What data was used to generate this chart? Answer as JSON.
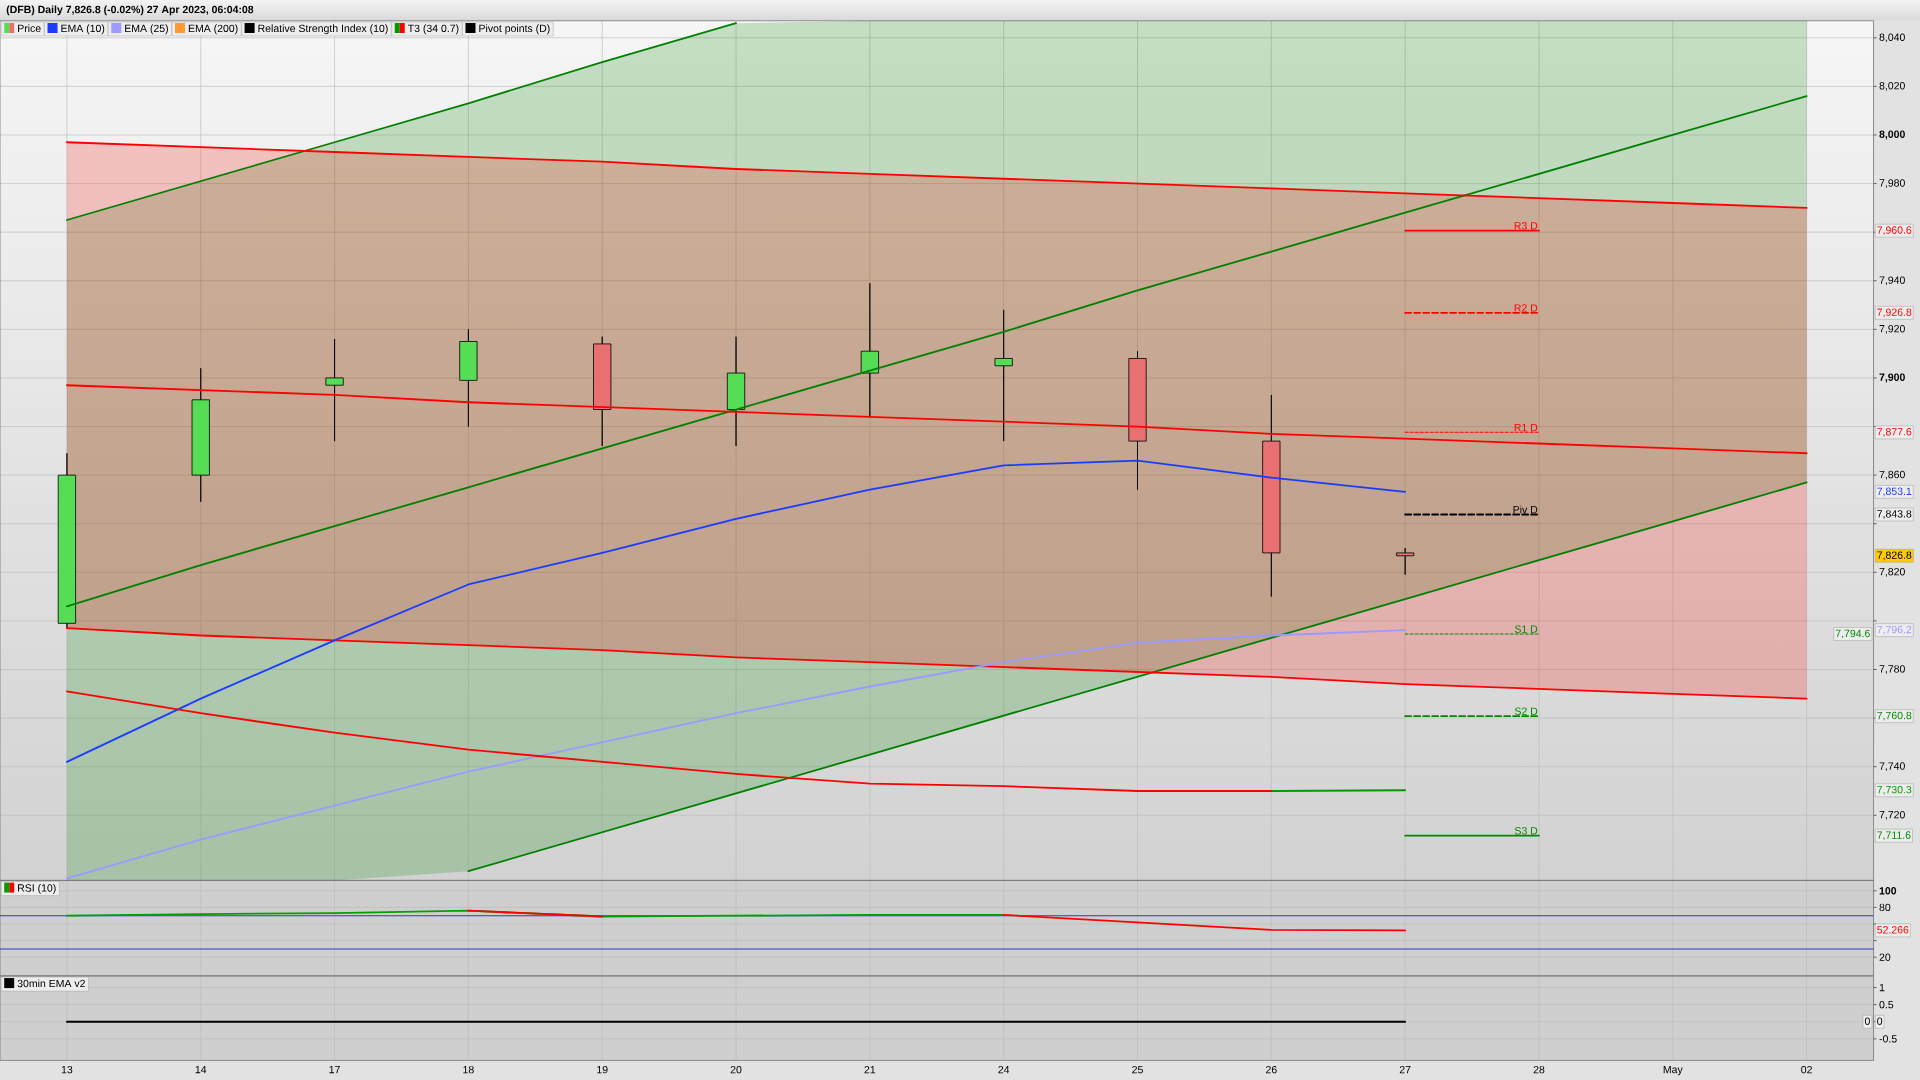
{
  "chart_data": [
    {
      "type": "candlestick",
      "title": "(DFB) Daily 7,826.8 (-0.02%) 27 Apr 2023, 06:04:08",
      "legend": "top left",
      "grid": true,
      "categories": [
        null,
        null,
        null,
        null,
        null,
        null,
        null,
        null,
        null,
        null,
        null,
        null,
        null,
        null
      ],
      "ylim": [
        7693.2,
        8047
      ],
      "yticks": [
        {
          "value": 7720,
          "label": "7,720"
        },
        {
          "value": 7740,
          "label": "7,740"
        },
        {
          "value": 7760,
          "label": null
        },
        {
          "value": 7780,
          "label": "7,780"
        },
        {
          "value": 7800,
          "label": null
        },
        {
          "value": 7820,
          "label": "7,820"
        },
        {
          "value": 7840,
          "label": null
        },
        {
          "value": 7860,
          "label": "7,860"
        },
        {
          "value": 7880,
          "label": null
        },
        {
          "value": 7900,
          "label": "7,900"
        },
        {
          "value": 7920,
          "label": "7,920"
        },
        {
          "value": 7940,
          "label": "7,940"
        },
        {
          "value": 7960,
          "label": null
        },
        {
          "value": 7980,
          "label": "7,980"
        },
        {
          "value": 8000,
          "label": "8,000"
        },
        {
          "value": 8020,
          "label": "8,020"
        },
        {
          "value": 8040,
          "label": "8,040"
        }
      ],
      "series": [
        {
          "type": "line",
          "color": "#008000",
          "values": [
            7806,
            7823,
            7839,
            7855,
            7871,
            7887,
            7903,
            7919,
            7936,
            7952,
            7968,
            7984,
            8000,
            8016
          ],
          "lower": [
            7693.2,
            7693.2,
            7693.2,
            7697,
            7713,
            7729,
            7745,
            7761,
            7777,
            7793,
            7809,
            7825,
            7841,
            7857
          ],
          "upper": [
            7965,
            7981,
            7997,
            8013,
            8030,
            8046,
            8047,
            8047,
            8047,
            8047,
            8047,
            8047,
            8047,
            8047
          ]
        },
        {
          "type": "line",
          "color": "#008000",
          "values": [
            7965,
            7981,
            7997,
            8013,
            8030,
            8046,
            null,
            null,
            null,
            null,
            null,
            null,
            null,
            null
          ]
        },
        {
          "type": "line",
          "color": "#008000",
          "values": [
            null,
            null,
            null,
            7697,
            7713,
            7729,
            7745,
            7761,
            7777,
            7793,
            7809,
            7825,
            7841,
            7857
          ]
        },
        {
          "type": "line",
          "color": "#ff0000",
          "values": [
            7897,
            7895,
            7893,
            7890,
            7888,
            7886,
            7884,
            7882,
            7880,
            7877,
            7875,
            7873,
            7871,
            7869
          ],
          "lower": [
            7797,
            7794,
            7792,
            7790,
            7788,
            7785,
            7783,
            7781,
            7779,
            7777,
            7774,
            7772,
            7770,
            7768
          ],
          "upper": [
            7997,
            7995,
            7993,
            7991,
            7989,
            7986,
            7984,
            7982,
            7980,
            7978,
            7976,
            7974,
            7972,
            7970
          ]
        },
        {
          "type": "line",
          "color": "#ff0000",
          "values": [
            7997,
            7995,
            7993,
            7991,
            7989,
            7986,
            7984,
            7982,
            7980,
            7978,
            7976,
            7974,
            7972,
            7970
          ]
        },
        {
          "type": "line",
          "color": "#ff0000",
          "values": [
            7797,
            7794,
            7792,
            7790,
            7788,
            7785,
            7783,
            7781,
            7779,
            7777,
            7774,
            7772,
            7770,
            7768
          ]
        },
        {
          "name": "Price",
          "ohlc": [
            [
              7799,
              7869,
              7797,
              7860
            ],
            [
              7860,
              7904,
              7849,
              7891
            ],
            [
              7897,
              7916,
              7874,
              7900
            ],
            [
              7899,
              7920,
              7880,
              7915
            ],
            [
              7914,
              7917,
              7872,
              7887
            ],
            [
              7887,
              7917,
              7872,
              7902
            ],
            [
              7902,
              7939,
              7884,
              7911
            ],
            [
              7905,
              7928,
              7874,
              7908
            ],
            [
              7908,
              7911,
              7854,
              7874
            ],
            [
              7874,
              7893,
              7810,
              7828
            ],
            [
              7828,
              7830,
              7819,
              7826.8
            ],
            null,
            null,
            null
          ],
          "colors": [
            "#55dd55",
            "#55dd55",
            "#55dd55",
            "#55dd55",
            "#e87070",
            "#55dd55",
            "#55dd55",
            "#55dd55",
            "#e87070",
            "#e87070",
            "#e87070",
            null,
            null,
            null
          ]
        },
        {
          "name": "EMA (10)",
          "type": "line",
          "color": "#1a3cff",
          "values": [
            7742,
            7768,
            7792,
            7815,
            7828,
            7842,
            7854,
            7864,
            7866,
            7859,
            7853.1,
            null,
            null,
            null
          ]
        },
        {
          "name": "EMA (25)",
          "type": "line",
          "color": "#9a9aff",
          "values": [
            7694,
            7710,
            7724,
            7738,
            7750,
            7762,
            7773,
            7783,
            7791,
            7794,
            7796.2,
            null,
            null,
            null
          ]
        },
        {
          "name": "EMA (200)",
          "type": "line",
          "color": "#ff9933",
          "values": [
            null,
            null,
            null,
            null,
            null,
            null,
            null,
            null,
            null,
            null,
            null,
            null,
            null,
            null
          ]
        },
        {
          "name": "Relative Strength Index (10)",
          "type": "line",
          "color": "#000000",
          "values": [
            null,
            null,
            null,
            null,
            null,
            null,
            null,
            null,
            null,
            null,
            null,
            null,
            null,
            null
          ]
        },
        {
          "name": "T3 (34 0.7)",
          "type": "line",
          "color": "#009900",
          "values": [
            null,
            null,
            null,
            null,
            null,
            null,
            null,
            null,
            null,
            7730,
            7730.3,
            null,
            null,
            null
          ]
        },
        {
          "type": "line",
          "color": "#ff0000",
          "values": [
            7771,
            7762,
            7754,
            7747,
            7742,
            7737,
            7733,
            7732,
            7730,
            7730,
            null,
            null,
            null,
            null
          ]
        },
        {
          "name": "Pivot points (D)",
          "type": "line",
          "color": "#000000",
          "values": [
            null,
            null,
            null,
            null,
            null,
            null,
            null,
            null,
            null,
            null,
            null,
            null,
            null,
            null
          ]
        }
      ],
      "ref_lines": [
        {
          "axis": "y",
          "value": 7960.6,
          "label": "R3 D",
          "color": "#ff0000"
        },
        {
          "axis": "y",
          "value": 7926.8,
          "label": "R2 D",
          "color": "#ff0000",
          "line_style": "dashed"
        },
        {
          "axis": "y",
          "value": 7877.6,
          "label": "R1 D",
          "color": "#ff0000",
          "line_style": "dotted"
        },
        {
          "axis": "y",
          "value": 7843.8,
          "label": "Piv D",
          "color": "#000000",
          "line_style": "dashed"
        },
        {
          "axis": "y",
          "value": 7794.6,
          "label": "S1 D",
          "color": "#008800",
          "line_style": "dotted"
        },
        {
          "axis": "y",
          "value": 7760.8,
          "label": "S2 D",
          "color": "#008800",
          "line_style": "dashed"
        },
        {
          "axis": "y",
          "value": 7711.6,
          "label": "S3 D",
          "color": "#008800"
        }
      ],
      "annotations": [
        {
          "text": "7,960.6",
          "y": 7960.6
        },
        {
          "text": "7,926.8",
          "y": 7926.8
        },
        {
          "text": "7,877.6",
          "y": 7877.6
        },
        {
          "text": "7,853.1",
          "y": 7853.1
        },
        {
          "text": "7,843.8",
          "y": 7843.8
        },
        {
          "text": "7,826.8",
          "y": 7826.8
        },
        {
          "text": "7,796.2",
          "y": 7796.2
        },
        {
          "text": "7,794.6",
          "y": 7794.6
        },
        {
          "text": "7,760.8",
          "y": 7760.8
        },
        {
          "text": "7,730.3",
          "y": 7730.3
        },
        {
          "text": "7,711.6",
          "y": 7711.6
        }
      ]
    },
    {
      "type": "line",
      "legend": "top left",
      "grid": true,
      "categories": [
        null,
        null,
        null,
        null,
        null,
        null,
        null,
        null,
        null,
        null,
        null,
        null,
        null,
        null
      ],
      "ylim": [
        -2.5,
        112.5
      ],
      "yticks": [
        20,
        {
          "value": 40,
          "label": null
        },
        {
          "value": 60,
          "label": null
        },
        80,
        100
      ],
      "series": [
        {
          "name": "RSI (10)",
          "color": "#00a000",
          "values": [
            70,
            72,
            73,
            76,
            69,
            70,
            71,
            71,
            null,
            null,
            null,
            null,
            null,
            null
          ]
        },
        {
          "color": "#ff0000",
          "values": [
            null,
            null,
            null,
            76,
            69,
            null,
            null,
            71,
            62,
            53,
            52.266,
            null,
            null,
            null
          ]
        }
      ],
      "ref_lines": [
        {
          "axis": "y",
          "value": 70,
          "color": "#3333cc"
        },
        {
          "axis": "y",
          "value": 30,
          "color": "#3333cc"
        }
      ],
      "annotations": [
        {
          "text": "52.266",
          "y": 52.266
        }
      ]
    },
    {
      "type": "line",
      "legend": "top left",
      "grid": true,
      "categories": [
        "13",
        "14",
        "17",
        "18",
        "19",
        "20",
        "21",
        "24",
        "25",
        "26",
        "27",
        "28",
        "May",
        "02"
      ],
      "ylim": [
        -1.13,
        1.34
      ],
      "yticks": [
        -0.5,
        {
          "value": 0,
          "label": null
        },
        0.5,
        1
      ],
      "series": [
        {
          "name": "30min EMA v2",
          "color": "#000000",
          "values": [
            0,
            0,
            0,
            0,
            0,
            0,
            0,
            0,
            0,
            0,
            0,
            null,
            null,
            null
          ]
        }
      ],
      "annotations": [
        {
          "text": "0",
          "y": 0
        },
        {
          "text": "0",
          "y": 0
        }
      ]
    }
  ]
}
